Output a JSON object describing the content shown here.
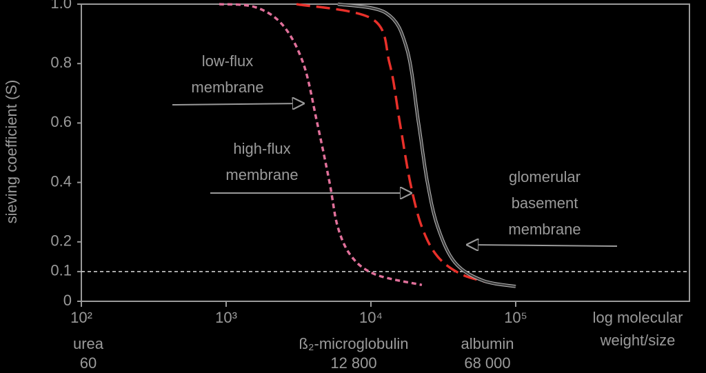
{
  "chart_data": {
    "type": "line",
    "y_label": "sieving coefficient (S)",
    "x_label": [
      "log molecular",
      "weight/size"
    ],
    "log_x": true,
    "xlim": [
      100,
      1585000
    ],
    "xticks": [
      {
        "value": 100,
        "label": "10²"
      },
      {
        "value": 1000,
        "label": "10³"
      },
      {
        "value": 10000,
        "label": "10⁴"
      },
      {
        "value": 100000,
        "label": "10⁵"
      }
    ],
    "ylim": [
      0,
      1
    ],
    "yticks": [
      0,
      0.1,
      0.2,
      0.4,
      0.6,
      0.8,
      {
        "value": 1,
        "label": "1.0"
      }
    ],
    "hline": 0.1,
    "series": [
      {
        "name": "low-flux membrane",
        "color": "#e0709a",
        "style": "dotted",
        "x": [
          896,
          1585,
          2455,
          3415,
          4255,
          5180,
          5905,
          7365,
          10790,
          22490
        ],
        "values": [
          1.0,
          0.99,
          0.93,
          0.8,
          0.6,
          0.4,
          0.25,
          0.15,
          0.09,
          0.055
        ]
      },
      {
        "name": "high-flux membrane",
        "color": "#e8302a",
        "style": "dashed",
        "x": [
          3060,
          10230,
          13460,
          15850,
          18680,
          22490,
          28960,
          42530,
          69660
        ],
        "values": [
          1.0,
          0.95,
          0.8,
          0.6,
          0.4,
          0.25,
          0.15,
          0.09,
          0.06
        ]
      },
      {
        "name": "glomerular basement membrane",
        "color": "#3a3a3a",
        "style": "solid",
        "x": [
          5905,
          12740,
          17700,
          21330,
          24550,
          28960,
          38100,
          59050,
          100000
        ],
        "values": [
          1.0,
          0.97,
          0.85,
          0.6,
          0.4,
          0.25,
          0.13,
          0.07,
          0.05
        ]
      }
    ],
    "annotations": [
      [
        "low-flux",
        "membrane"
      ],
      [
        "high-flux",
        "membrane"
      ],
      [
        "glomerular",
        "basement",
        "membrane"
      ]
    ],
    "compounds": [
      {
        "name": "urea",
        "weight": "60"
      },
      {
        "name": "ß₂-microglobulin",
        "weight": "12 800"
      },
      {
        "name": "albumin",
        "weight": "68 000"
      }
    ]
  }
}
